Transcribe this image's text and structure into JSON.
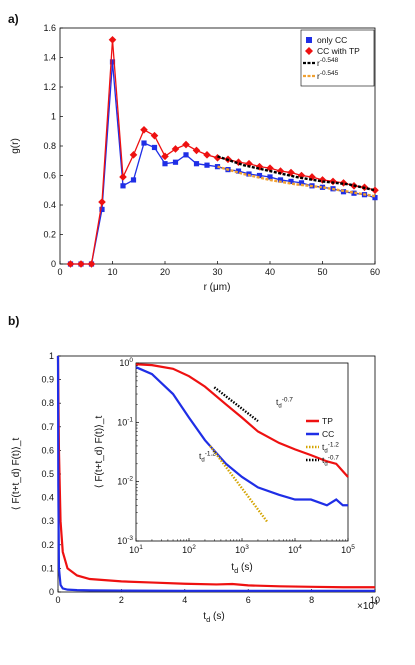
{
  "panels": {
    "a": "a)",
    "b": "b)"
  },
  "colors": {
    "cc": "#1f2ee6",
    "tp": "#ee1111",
    "fit_black": "#000000",
    "fit_orange": "#f0a030",
    "fit_dot": "#d4a400"
  },
  "chart_data": [
    {
      "id": "a",
      "type": "line",
      "xlabel": "r (μm)",
      "ylabel": "g(r)",
      "xlim": [
        0,
        60
      ],
      "ylim": [
        0,
        1.6
      ],
      "xticks": [
        0,
        10,
        20,
        30,
        40,
        50,
        60
      ],
      "yticks": [
        0,
        0.2,
        0.4,
        0.6,
        0.8,
        1,
        1.2,
        1.4,
        1.6
      ],
      "grid": false,
      "legend_position": "top-right",
      "series": [
        {
          "name": "only CC",
          "x": [
            2,
            4,
            6,
            8,
            10,
            12,
            14,
            16,
            18,
            20,
            22,
            24,
            26,
            28,
            30,
            32,
            34,
            36,
            38,
            40,
            42,
            44,
            46,
            48,
            50,
            52,
            54,
            56,
            58,
            60
          ],
          "y": [
            0,
            0,
            0,
            0.37,
            1.37,
            0.53,
            0.57,
            0.82,
            0.79,
            0.68,
            0.69,
            0.74,
            0.68,
            0.67,
            0.66,
            0.64,
            0.63,
            0.61,
            0.6,
            0.59,
            0.57,
            0.56,
            0.55,
            0.53,
            0.52,
            0.51,
            0.49,
            0.48,
            0.47,
            0.45
          ]
        },
        {
          "name": "CC with TP",
          "x": [
            2,
            4,
            6,
            8,
            10,
            12,
            14,
            16,
            18,
            20,
            22,
            24,
            26,
            28,
            30,
            32,
            34,
            36,
            38,
            40,
            42,
            44,
            46,
            48,
            50,
            52,
            54,
            56,
            58,
            60
          ],
          "y": [
            0,
            0,
            0,
            0.42,
            1.52,
            0.59,
            0.74,
            0.91,
            0.87,
            0.73,
            0.78,
            0.81,
            0.77,
            0.74,
            0.72,
            0.71,
            0.69,
            0.68,
            0.66,
            0.65,
            0.63,
            0.62,
            0.6,
            0.59,
            0.57,
            0.56,
            0.55,
            0.53,
            0.52,
            0.5
          ]
        },
        {
          "name": "r^-0.548",
          "kind": "fit",
          "x": [
            30,
            35,
            40,
            45,
            50,
            55,
            60
          ],
          "y": [
            0.73,
            0.67,
            0.63,
            0.59,
            0.56,
            0.54,
            0.5
          ]
        },
        {
          "name": "r^-0.545",
          "kind": "fit",
          "x": [
            30,
            35,
            40,
            45,
            50,
            55,
            60
          ],
          "y": [
            0.66,
            0.61,
            0.57,
            0.54,
            0.52,
            0.49,
            0.46
          ]
        }
      ],
      "legend": [
        {
          "base": "only CC",
          "sup": ""
        },
        {
          "base": "CC with TP",
          "sup": ""
        },
        {
          "base": "r",
          "sup": "-0.548"
        },
        {
          "base": "r",
          "sup": "-0.545"
        }
      ]
    },
    {
      "id": "b",
      "type": "line",
      "xlabel": {
        "base": "t",
        "sub": "d",
        "rest": " (s)"
      },
      "ylabel": "⟨ F(t+t_d) F(t)⟩_t",
      "xlim": [
        0,
        100000
      ],
      "ylim": [
        0,
        1
      ],
      "xticks": [
        0,
        2,
        4,
        6,
        8,
        10
      ],
      "xtick_multiplier": "×10",
      "xtick_multiplier_exp": "4",
      "yticks": [
        0,
        0.1,
        0.2,
        0.3,
        0.4,
        0.5,
        0.6,
        0.7,
        0.8,
        0.9,
        1
      ],
      "series": [
        {
          "name": "TP",
          "x": [
            0,
            300,
            800,
            1500,
            3000,
            6000,
            10000,
            20000,
            30000,
            40000,
            50000,
            55000,
            60000,
            70000,
            80000,
            90000,
            100000
          ],
          "y": [
            1,
            0.6,
            0.3,
            0.17,
            0.1,
            0.07,
            0.055,
            0.045,
            0.04,
            0.035,
            0.032,
            0.034,
            0.028,
            0.024,
            0.022,
            0.02,
            0.02
          ]
        },
        {
          "name": "CC",
          "x": [
            0,
            100,
            300,
            800,
            1500,
            3000,
            6000,
            10000,
            20000,
            40000,
            60000,
            80000,
            100000
          ],
          "y": [
            1,
            0.45,
            0.1,
            0.03,
            0.015,
            0.01,
            0.008,
            0.007,
            0.006,
            0.005,
            0.005,
            0.005,
            0.005
          ]
        }
      ],
      "inset": {
        "type": "line",
        "xscale": "log",
        "yscale": "log",
        "xlabel": {
          "base": "t",
          "sub": "d",
          "rest": " (s)"
        },
        "ylabel": "⟨ F(t+t_d) F(t)⟩_t",
        "xlim": [
          10,
          100000
        ],
        "ylim": [
          0.001,
          1
        ],
        "xtick_exps": [
          1,
          2,
          3,
          4,
          5
        ],
        "ytick_exps": [
          -3,
          -2,
          -1,
          0
        ],
        "series": [
          {
            "name": "TP",
            "x": [
              10,
              20,
              50,
              100,
              200,
              500,
              1000,
              2000,
              5000,
              10000,
              20000,
              40000,
              60000,
              80000,
              100000
            ],
            "y": [
              0.95,
              0.92,
              0.8,
              0.6,
              0.4,
              0.2,
              0.12,
              0.07,
              0.045,
              0.035,
              0.028,
              0.022,
              0.02,
              0.015,
              0.012
            ]
          },
          {
            "name": "CC",
            "x": [
              10,
              20,
              50,
              100,
              200,
              500,
              1000,
              2000,
              5000,
              10000,
              20000,
              40000,
              60000,
              80000,
              100000
            ],
            "y": [
              0.85,
              0.65,
              0.3,
              0.12,
              0.05,
              0.02,
              0.012,
              0.008,
              0.006,
              0.005,
              0.005,
              0.004,
              0.005,
              0.004,
              0.004
            ]
          },
          {
            "name": "t_d^-1.2",
            "kind": "fit",
            "x": [
              250,
              3000
            ],
            "y": [
              0.04,
              0.0021
            ]
          },
          {
            "name": "t_d^-0.7",
            "kind": "fit",
            "x": [
              300,
              2000
            ],
            "y": [
              0.39,
              0.105
            ]
          }
        ],
        "legend": [
          {
            "base": "TP",
            "sub": "",
            "sup": ""
          },
          {
            "base": "CC",
            "sub": "",
            "sup": ""
          },
          {
            "base": "t",
            "sub": "d",
            "sup": "-1.2"
          },
          {
            "base": "t",
            "sub": "d",
            "sup": "-0.7"
          }
        ],
        "annotations": [
          {
            "base": "t",
            "sub": "d",
            "sup": "-0.7"
          },
          {
            "base": "t",
            "sub": "d",
            "sup": "-1.2"
          }
        ]
      }
    }
  ]
}
